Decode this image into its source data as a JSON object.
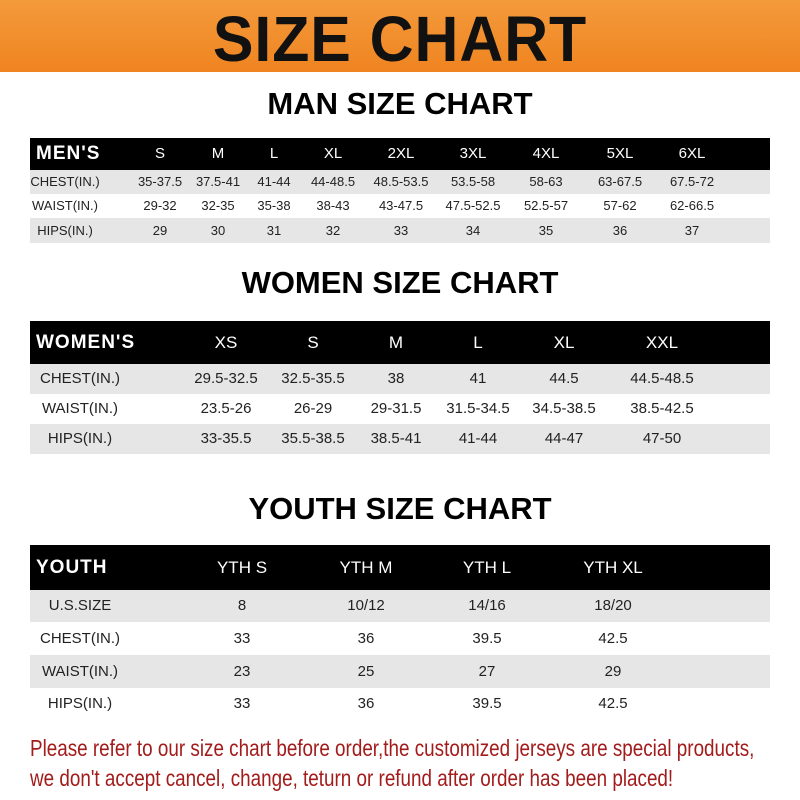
{
  "title": "SIZE CHART",
  "colors": {
    "banner": "#f08a28",
    "header": "#000000",
    "stripe": "#e6e6e6",
    "note": "#a31c1c"
  },
  "men": {
    "title": "MAN SIZE CHART",
    "header": [
      "MEN'S",
      "S",
      "M",
      "L",
      "XL",
      "2XL",
      "3XL",
      "4XL",
      "5XL",
      "6XL"
    ],
    "rows": [
      [
        "CHEST(IN.)",
        "35-37.5",
        "37.5-41",
        "41-44",
        "44-48.5",
        "48.5-53.5",
        "53.5-58",
        "58-63",
        "63-67.5",
        "67.5-72"
      ],
      [
        "WAIST(IN.)",
        "29-32",
        "32-35",
        "35-38",
        "38-43",
        "43-47.5",
        "47.5-52.5",
        "52.5-57",
        "57-62",
        "62-66.5"
      ],
      [
        "HIPS(IN.)",
        "29",
        "30",
        "31",
        "32",
        "33",
        "34",
        "35",
        "36",
        "37"
      ]
    ]
  },
  "women": {
    "title": "WOMEN SIZE CHART",
    "header": [
      "WOMEN'S",
      "XS",
      "S",
      "M",
      "L",
      "XL",
      "XXL"
    ],
    "rows": [
      [
        "CHEST(IN.)",
        "29.5-32.5",
        "32.5-35.5",
        "38",
        "41",
        "44.5",
        "44.5-48.5"
      ],
      [
        "WAIST(IN.)",
        "23.5-26",
        "26-29",
        "29-31.5",
        "31.5-34.5",
        "34.5-38.5",
        "38.5-42.5"
      ],
      [
        "HIPS(IN.)",
        "33-35.5",
        "35.5-38.5",
        "38.5-41",
        "41-44",
        "44-47",
        "47-50"
      ]
    ]
  },
  "youth": {
    "title": "YOUTH SIZE CHART",
    "header": [
      "YOUTH",
      "YTH S",
      "YTH M",
      "YTH L",
      "YTH XL"
    ],
    "rows": [
      [
        "U.S.SIZE",
        "8",
        "10/12",
        "14/16",
        "18/20"
      ],
      [
        "CHEST(IN.)",
        "33",
        "36",
        "39.5",
        "42.5"
      ],
      [
        "WAIST(IN.)",
        "23",
        "25",
        "27",
        "29"
      ],
      [
        "HIPS(IN.)",
        "33",
        "36",
        "39.5",
        "42.5"
      ]
    ]
  },
  "note": {
    "line1": "Please refer to our size chart before order,the customized jerseys are special products,",
    "line2": "we don't accept cancel, change, teturn or refund after order has been placed!"
  }
}
